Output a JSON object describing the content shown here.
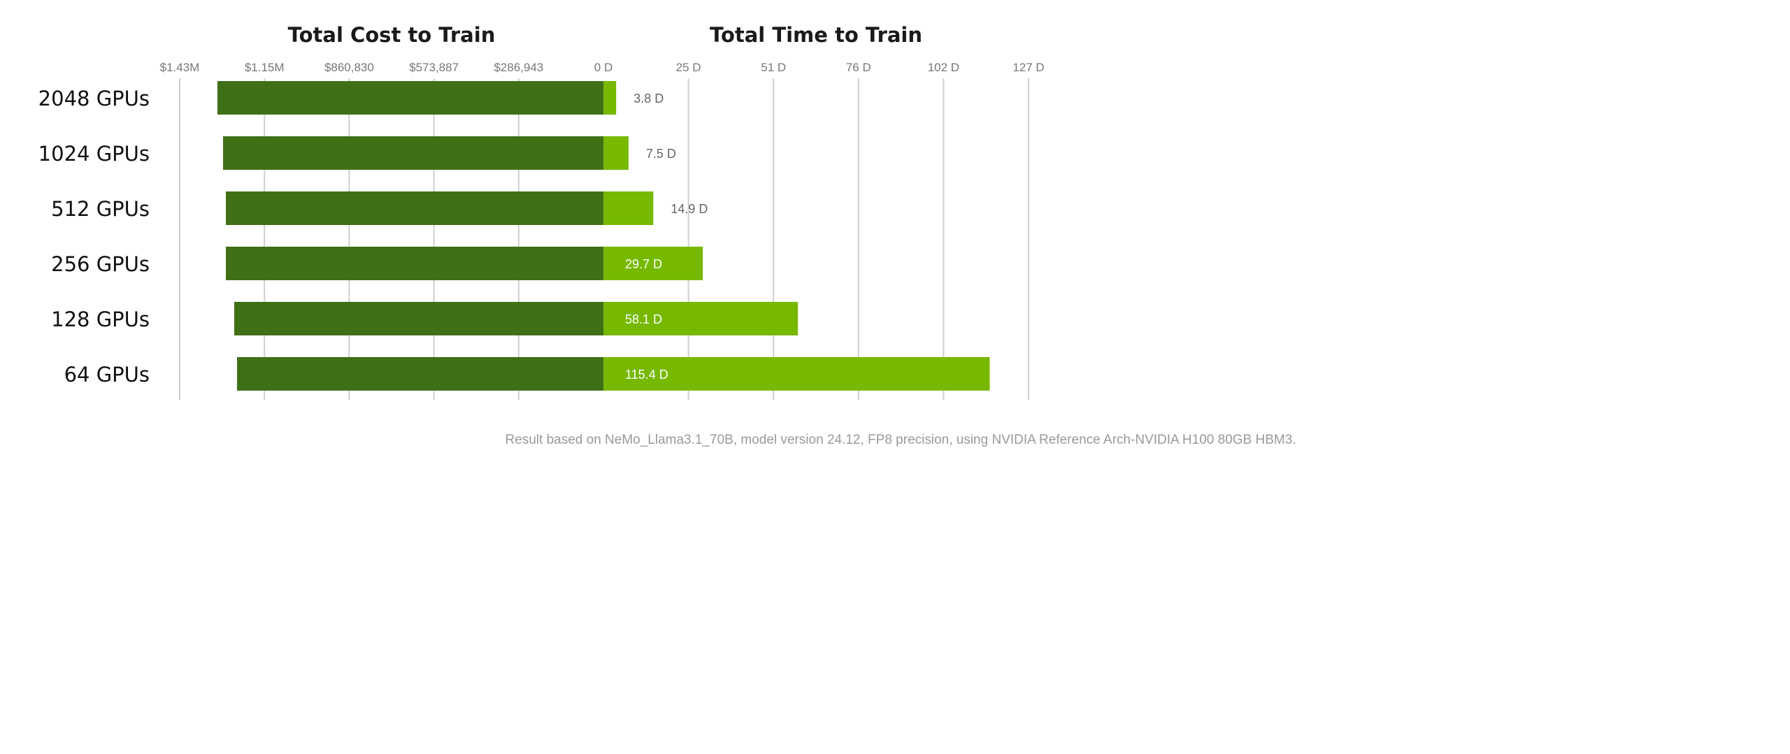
{
  "chart_data": [
    {
      "type": "bar",
      "orientation": "horizontal",
      "direction": "leftward",
      "title": "Total Cost to Train",
      "categories": [
        "2048 GPUs",
        "1024 GPUs",
        "512 GPUs",
        "256 GPUs",
        "128 GPUs",
        "64 GPUs"
      ],
      "values": [
        1306900,
        1287900,
        1278500,
        1278500,
        1250100,
        1240600
      ],
      "unit": "USD",
      "xlim": [
        0,
        1434715
      ],
      "tick_values": [
        1434715,
        1147772,
        860830,
        573887,
        286943,
        0
      ],
      "tick_labels": [
        "$1.43M",
        "$1.15M",
        "$860,830",
        "$573,887",
        "$286,943",
        "0 D"
      ],
      "grid": true,
      "color": "#3f7016"
    },
    {
      "type": "bar",
      "orientation": "horizontal",
      "title": "Total Time to Train",
      "categories": [
        "2048 GPUs",
        "1024 GPUs",
        "512 GPUs",
        "256 GPUs",
        "128 GPUs",
        "64 GPUs"
      ],
      "values": [
        3.8,
        7.5,
        14.9,
        29.7,
        58.1,
        115.4
      ],
      "data_labels": [
        "3.8 D",
        "7.5 D",
        "14.9 D",
        "29.7 D",
        "58.1 D",
        "115.4 D"
      ],
      "unit": "days",
      "xlim": [
        0,
        127
      ],
      "tick_values": [
        25.4,
        50.8,
        76.2,
        101.6,
        127
      ],
      "tick_labels": [
        "25 D",
        "51 D",
        "76 D",
        "102 D",
        "127 D"
      ],
      "grid": true,
      "color": "#76b900"
    }
  ],
  "footnote": "Result based on NeMo_Llama3.1_70B, model version 24.12, FP8 precision, using NVIDIA Reference Arch-NVIDIA H100 80GB HBM3."
}
